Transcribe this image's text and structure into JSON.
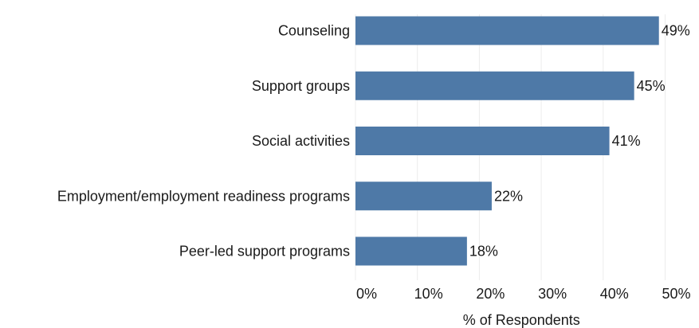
{
  "chart_data": {
    "type": "bar",
    "orientation": "horizontal",
    "categories": [
      "Counseling",
      "Support groups",
      "Social activities",
      "Employment/employment readiness programs",
      "Peer-led support programs"
    ],
    "values": [
      49,
      45,
      41,
      22,
      18
    ],
    "value_labels": [
      "49%",
      "45%",
      "41%",
      "22%",
      "18%"
    ],
    "xticks": [
      0,
      10,
      20,
      30,
      40,
      50
    ],
    "xtick_labels": [
      "0%",
      "10%",
      "20%",
      "30%",
      "40%",
      "50%"
    ],
    "xlabel": "% of Respondents",
    "xlim": [
      0,
      56
    ],
    "grid": true,
    "bar_color": "#4e79a7"
  }
}
